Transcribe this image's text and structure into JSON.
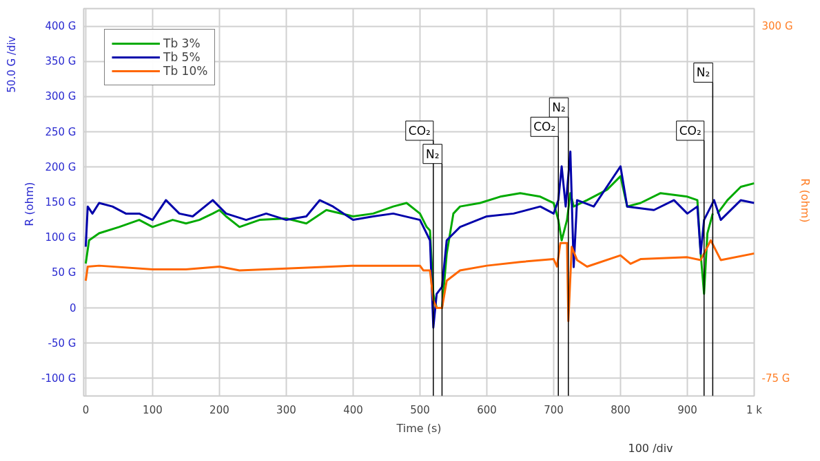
{
  "chart_data": {
    "type": "line",
    "xlabel": "Time (s)",
    "ylabel": "R  (ohm)",
    "y2label": "R  (ohm)",
    "annotations": [
      "50.0 G /div",
      "100  /div"
    ],
    "xlim": [
      -3,
      1000
    ],
    "ylim": [
      -125,
      425
    ],
    "y2lim": [
      -93.75,
      318.75
    ],
    "xticks": [
      0,
      100,
      200,
      300,
      400,
      500,
      600,
      700,
      800,
      900,
      {
        "value": 1000,
        "label": "1 k"
      }
    ],
    "yticks": [
      {
        "value": -100,
        "label": "-100 G"
      },
      {
        "value": -50,
        "label": "-50 G"
      },
      0,
      {
        "value": 50,
        "label": "50 G"
      },
      {
        "value": 100,
        "label": "100 G"
      },
      {
        "value": 150,
        "label": "150 G"
      },
      {
        "value": 200,
        "label": "200 G"
      },
      {
        "value": 250,
        "label": "250 G"
      },
      {
        "value": 300,
        "label": "300 G"
      },
      {
        "value": 350,
        "label": "350 G"
      },
      {
        "value": 400,
        "label": "400 G"
      }
    ],
    "y2ticks": [
      {
        "value": -75,
        "label": "-75 G"
      },
      {
        "value": 300,
        "label": "300 G"
      }
    ],
    "grid": true,
    "legend": "top left",
    "marker": "none",
    "line_style": "solid",
    "ref_lines": [
      {
        "axis": "x",
        "value": 520,
        "label": "CO₂",
        "color": "#000000"
      },
      {
        "axis": "x",
        "value": 533,
        "label": "N₂",
        "color": "#000000"
      },
      {
        "axis": "x",
        "value": 707,
        "label": "CO₂",
        "color": "#000000"
      },
      {
        "axis": "x",
        "value": 722,
        "label": "N₂",
        "color": "#000000"
      },
      {
        "axis": "x",
        "value": 925,
        "label": "CO₂",
        "color": "#000000"
      },
      {
        "axis": "x",
        "value": 938,
        "label": "N₂",
        "color": "#000000"
      }
    ],
    "series": [
      {
        "name": "Tb 3%",
        "color": "#00aa00",
        "x": [
          0,
          5,
          20,
          50,
          80,
          100,
          130,
          150,
          170,
          190,
          200,
          210,
          230,
          260,
          300,
          330,
          360,
          400,
          430,
          460,
          480,
          500,
          510,
          515,
          520,
          525,
          533,
          540,
          550,
          560,
          590,
          620,
          650,
          680,
          700,
          707,
          712,
          720,
          725,
          730,
          750,
          780,
          800,
          810,
          830,
          860,
          900,
          915,
          920,
          925,
          930,
          938,
          940,
          942,
          945,
          960,
          980,
          1000
        ],
        "values": [
          63,
          96,
          106,
          115,
          125,
          115,
          125,
          120,
          125,
          134,
          139,
          130,
          115,
          125,
          127,
          120,
          139,
          130,
          134,
          144,
          149,
          134,
          115,
          110,
          20,
          0,
          0,
          77,
          134,
          144,
          149,
          158,
          163,
          158,
          149,
          125,
          96,
          125,
          163,
          144,
          153,
          168,
          187,
          144,
          149,
          163,
          158,
          153,
          77,
          20,
          106,
          134,
          null,
          null,
          134,
          153,
          172,
          177
        ]
      },
      {
        "name": "Tb 5%",
        "color": "#0000aa",
        "x": [
          0,
          3,
          10,
          20,
          40,
          60,
          80,
          100,
          120,
          140,
          160,
          190,
          210,
          240,
          270,
          300,
          330,
          350,
          370,
          400,
          430,
          460,
          500,
          515,
          520,
          525,
          533,
          540,
          560,
          600,
          640,
          680,
          700,
          707,
          712,
          718,
          725,
          730,
          735,
          760,
          800,
          810,
          850,
          880,
          900,
          915,
          920,
          925,
          940,
          950,
          980,
          1000
        ],
        "values": [
          87,
          144,
          134,
          149,
          144,
          134,
          134,
          125,
          153,
          134,
          130,
          153,
          134,
          125,
          134,
          125,
          130,
          153,
          144,
          125,
          130,
          134,
          125,
          96,
          -28,
          20,
          30,
          96,
          115,
          130,
          134,
          144,
          134,
          153,
          201,
          144,
          222,
          58,
          153,
          144,
          201,
          144,
          139,
          153,
          134,
          144,
          77,
          125,
          153,
          125,
          153,
          149
        ]
      },
      {
        "name": "Tb 10%",
        "color": "#ff6600",
        "axis": "y2",
        "x": [
          0,
          3,
          20,
          100,
          150,
          200,
          230,
          300,
          400,
          500,
          505,
          515,
          520,
          525,
          533,
          540,
          560,
          600,
          650,
          700,
          705,
          710,
          720,
          722,
          727,
          735,
          750,
          800,
          815,
          830,
          900,
          920,
          935,
          945,
          950,
          1000
        ],
        "values": [
          29,
          44,
          45,
          41,
          41,
          44,
          40,
          42,
          45,
          45,
          40,
          40,
          8,
          0,
          0,
          29,
          40,
          45,
          49,
          52,
          44,
          69,
          69,
          -14,
          65,
          51,
          44,
          56,
          47,
          52,
          54,
          51,
          72,
          58,
          51,
          58
        ]
      }
    ]
  }
}
